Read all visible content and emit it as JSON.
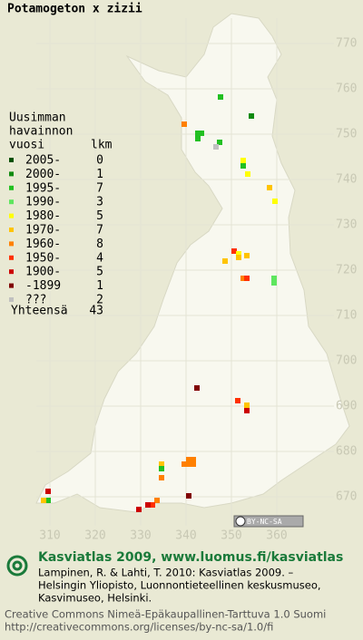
{
  "title": "Potamogeton x zizii",
  "legend": {
    "heading": [
      "Uusimman",
      "havainnon"
    ],
    "col_year": "vuosi",
    "col_count": "lkm",
    "rows": [
      {
        "label": "2005-",
        "count": 0,
        "color": "#005000"
      },
      {
        "label": "2000-",
        "count": 1,
        "color": "#108a10"
      },
      {
        "label": "1995-",
        "count": 7,
        "color": "#22c022"
      },
      {
        "label": "1990-",
        "count": 3,
        "color": "#5ee65e"
      },
      {
        "label": "1980-",
        "count": 5,
        "color": "#ffff00"
      },
      {
        "label": "1970-",
        "count": 7,
        "color": "#ffc400"
      },
      {
        "label": "1960-",
        "count": 8,
        "color": "#ff8000"
      },
      {
        "label": "1950-",
        "count": 4,
        "color": "#ff3000"
      },
      {
        "label": "1900-",
        "count": 5,
        "color": "#cc0000"
      },
      {
        "label": "-1899",
        "count": 1,
        "color": "#800000"
      },
      {
        "label": "???",
        "count": 2,
        "color": "#c0c0c0"
      }
    ],
    "total_label": "Yhteensä",
    "total": 43
  },
  "grid_north": [
    "770",
    "760",
    "750",
    "740",
    "730",
    "720",
    "710",
    "700",
    "690",
    "680",
    "670"
  ],
  "grid_east": [
    "310",
    "320",
    "330",
    "340",
    "350",
    "360"
  ],
  "license_badge": "BY-NC-SA",
  "footer": {
    "headline": "Kasviatlas 2009, www.luomus.fi/kasviatlas",
    "citation": [
      "Lampinen, R. & Lahti, T. 2010: Kasviatlas 2009. –",
      "Helsingin Yliopisto, Luonnontieteellinen keskusmuseo,",
      "Kasvimuseo, Helsinki."
    ],
    "license": [
      "Creative Commons Nimeä-Epäkaupallinen-Tarttuva 1.0 Suomi",
      "http://creativecommons.org/licenses/by-nc-sa/1.0/fi"
    ]
  }
}
